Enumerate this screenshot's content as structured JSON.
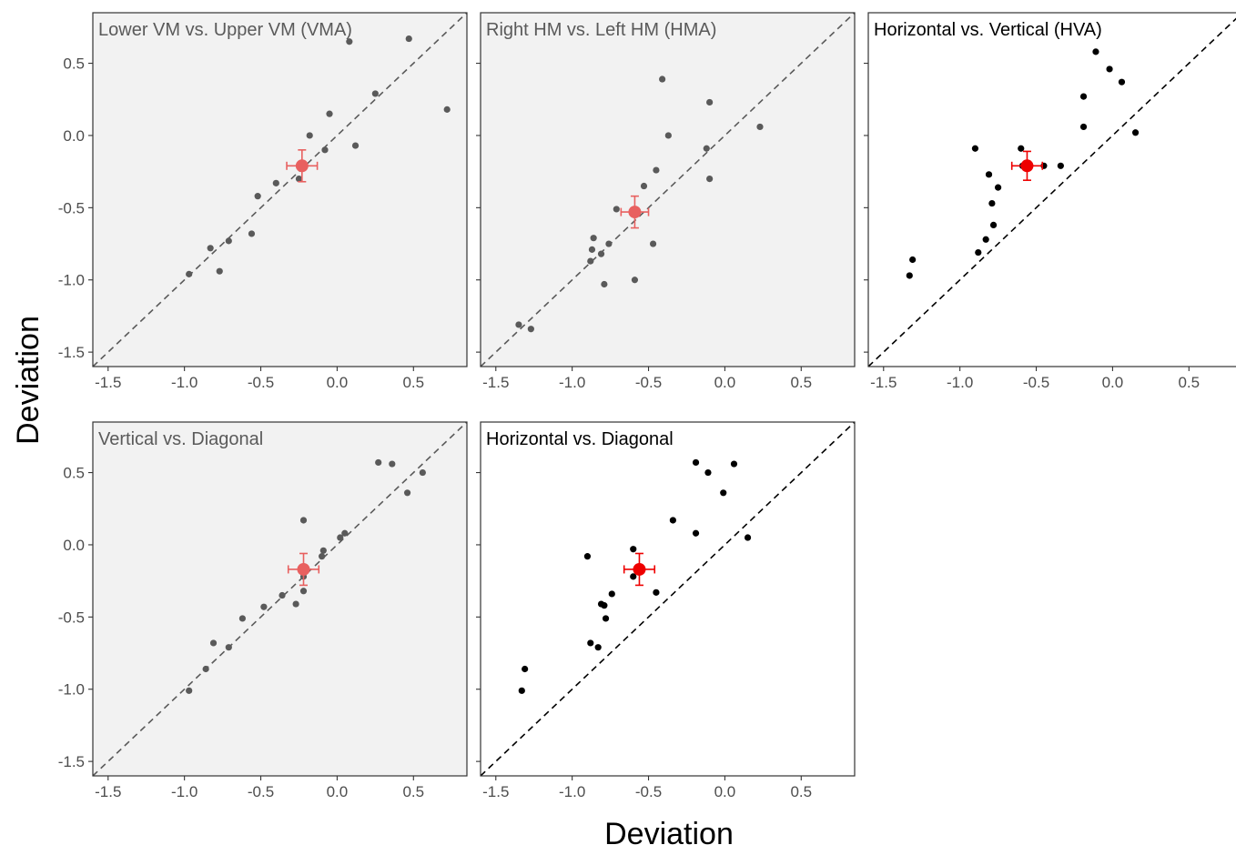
{
  "figure": {
    "x_title": "Deviation",
    "y_title": "Deviation",
    "colors": {
      "faded_panel_bg": "#f2f2f2",
      "faded_point": "#5a5a5a",
      "faded_summary": "#e8605f",
      "faded_text": "#5a5a5a",
      "highlight_point": "#000000",
      "highlight_summary": "#ee0000",
      "highlight_text": "#000000",
      "tick_label": "#4d4d4d"
    }
  },
  "chart_data": [
    {
      "type": "scatter",
      "title": "Lower VM vs. Upper VM (VMA)",
      "faded": true,
      "xlim": [
        -1.6,
        0.85
      ],
      "ylim": [
        -1.6,
        0.85
      ],
      "x_ticks": [
        "-1.5",
        "-1.0",
        "-0.5",
        "0.0",
        "0.5"
      ],
      "y_ticks": [
        "-1.5",
        "-1.0",
        "-0.5",
        "0.0",
        "0.5"
      ],
      "reference_line": "y = x",
      "points": [
        [
          -0.97,
          -0.96
        ],
        [
          -0.83,
          -0.78
        ],
        [
          -0.77,
          -0.94
        ],
        [
          -0.71,
          -0.73
        ],
        [
          -0.56,
          -0.68
        ],
        [
          -0.52,
          -0.42
        ],
        [
          -0.4,
          -0.33
        ],
        [
          -0.25,
          -0.3
        ],
        [
          -0.18,
          0.0
        ],
        [
          -0.08,
          -0.1
        ],
        [
          -0.05,
          0.15
        ],
        [
          0.08,
          0.65
        ],
        [
          0.12,
          -0.07
        ],
        [
          0.25,
          0.29
        ],
        [
          0.47,
          0.67
        ],
        [
          0.72,
          0.18
        ]
      ],
      "summary": {
        "x": -0.23,
        "y": -0.21,
        "x_err": 0.1,
        "y_err": 0.11
      }
    },
    {
      "type": "scatter",
      "title": "Right HM vs. Left HM (HMA)",
      "faded": true,
      "xlim": [
        -1.6,
        0.85
      ],
      "ylim": [
        -1.6,
        0.85
      ],
      "x_ticks": [
        "-1.5",
        "-1.0",
        "-0.5",
        "0.0",
        "0.5"
      ],
      "y_ticks": [],
      "reference_line": "y = x",
      "points": [
        [
          -1.35,
          -1.31
        ],
        [
          -1.27,
          -1.34
        ],
        [
          -0.88,
          -0.87
        ],
        [
          -0.87,
          -0.79
        ],
        [
          -0.86,
          -0.71
        ],
        [
          -0.81,
          -0.82
        ],
        [
          -0.79,
          -1.03
        ],
        [
          -0.76,
          -0.75
        ],
        [
          -0.71,
          -0.51
        ],
        [
          -0.59,
          -1.0
        ],
        [
          -0.53,
          -0.35
        ],
        [
          -0.47,
          -0.75
        ],
        [
          -0.45,
          -0.24
        ],
        [
          -0.41,
          0.39
        ],
        [
          -0.37,
          0.0
        ],
        [
          -0.12,
          -0.09
        ],
        [
          -0.1,
          0.23
        ],
        [
          -0.1,
          -0.3
        ],
        [
          0.23,
          0.06
        ]
      ],
      "summary": {
        "x": -0.59,
        "y": -0.53,
        "x_err": 0.09,
        "y_err": 0.11
      }
    },
    {
      "type": "scatter",
      "title": "Horizontal vs. Vertical (HVA)",
      "faded": false,
      "xlim": [
        -1.6,
        0.85
      ],
      "ylim": [
        -1.6,
        0.85
      ],
      "x_ticks": [
        "-1.5",
        "-1.0",
        "-0.5",
        "0.0",
        "0.5"
      ],
      "y_ticks": [],
      "reference_line": "y = x",
      "points": [
        [
          -1.33,
          -0.97
        ],
        [
          -1.31,
          -0.86
        ],
        [
          -0.9,
          -0.09
        ],
        [
          -0.88,
          -0.81
        ],
        [
          -0.83,
          -0.72
        ],
        [
          -0.81,
          -0.27
        ],
        [
          -0.79,
          -0.47
        ],
        [
          -0.78,
          -0.62
        ],
        [
          -0.75,
          -0.36
        ],
        [
          -0.6,
          -0.09
        ],
        [
          -0.59,
          -0.21
        ],
        [
          -0.45,
          -0.21
        ],
        [
          -0.34,
          -0.21
        ],
        [
          -0.19,
          0.27
        ],
        [
          -0.19,
          0.06
        ],
        [
          -0.11,
          0.58
        ],
        [
          -0.02,
          0.46
        ],
        [
          0.06,
          0.37
        ],
        [
          0.15,
          0.02
        ]
      ],
      "summary": {
        "x": -0.56,
        "y": -0.21,
        "x_err": 0.1,
        "y_err": 0.1
      }
    },
    {
      "type": "scatter",
      "title": "Vertical vs. Diagonal",
      "faded": true,
      "xlim": [
        -1.6,
        0.85
      ],
      "ylim": [
        -1.6,
        0.85
      ],
      "x_ticks": [
        "-1.5",
        "-1.0",
        "-0.5",
        "0.0",
        "0.5"
      ],
      "y_ticks": [
        "-1.5",
        "-1.0",
        "-0.5",
        "0.0",
        "0.5"
      ],
      "reference_line": "y = x",
      "points": [
        [
          -0.97,
          -1.01
        ],
        [
          -0.86,
          -0.86
        ],
        [
          -0.81,
          -0.68
        ],
        [
          -0.71,
          -0.71
        ],
        [
          -0.62,
          -0.51
        ],
        [
          -0.48,
          -0.43
        ],
        [
          -0.36,
          -0.35
        ],
        [
          -0.27,
          -0.41
        ],
        [
          -0.22,
          0.17
        ],
        [
          -0.22,
          -0.22
        ],
        [
          -0.22,
          -0.32
        ],
        [
          -0.1,
          -0.08
        ],
        [
          -0.09,
          -0.04
        ],
        [
          0.02,
          0.05
        ],
        [
          0.05,
          0.08
        ],
        [
          0.27,
          0.57
        ],
        [
          0.36,
          0.56
        ],
        [
          0.46,
          0.36
        ],
        [
          0.56,
          0.5
        ]
      ],
      "summary": {
        "x": -0.22,
        "y": -0.17,
        "x_err": 0.1,
        "y_err": 0.11
      }
    },
    {
      "type": "scatter",
      "title": "Horizontal vs. Diagonal",
      "faded": false,
      "xlim": [
        -1.6,
        0.85
      ],
      "ylim": [
        -1.6,
        0.85
      ],
      "x_ticks": [
        "-1.5",
        "-1.0",
        "-0.5",
        "0.0",
        "0.5"
      ],
      "y_ticks": [],
      "reference_line": "y = x",
      "points": [
        [
          -1.33,
          -1.01
        ],
        [
          -1.31,
          -0.86
        ],
        [
          -0.9,
          -0.08
        ],
        [
          -0.88,
          -0.68
        ],
        [
          -0.83,
          -0.71
        ],
        [
          -0.81,
          -0.41
        ],
        [
          -0.79,
          -0.42
        ],
        [
          -0.78,
          -0.51
        ],
        [
          -0.74,
          -0.34
        ],
        [
          -0.6,
          -0.03
        ],
        [
          -0.6,
          -0.22
        ],
        [
          -0.45,
          -0.33
        ],
        [
          -0.34,
          0.17
        ],
        [
          -0.19,
          0.57
        ],
        [
          -0.19,
          0.08
        ],
        [
          -0.11,
          0.5
        ],
        [
          -0.01,
          0.36
        ],
        [
          0.06,
          0.56
        ],
        [
          0.15,
          0.05
        ]
      ],
      "summary": {
        "x": -0.56,
        "y": -0.17,
        "x_err": 0.1,
        "y_err": 0.11
      }
    }
  ]
}
